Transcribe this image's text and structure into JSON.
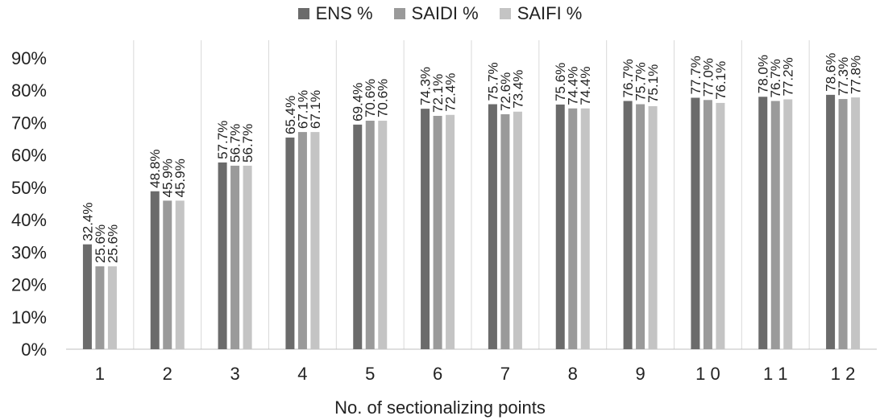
{
  "chart_data": {
    "type": "bar",
    "categories": [
      "1",
      "2",
      "3",
      "4",
      "5",
      "6",
      "7",
      "8",
      "9",
      "1 0",
      "1 1",
      "1 2"
    ],
    "series": [
      {
        "name": "ENS %",
        "color": "#6b6b6b",
        "values": [
          32.4,
          48.8,
          57.7,
          65.4,
          69.4,
          74.3,
          75.7,
          75.6,
          76.7,
          77.7,
          78.0,
          78.6
        ]
      },
      {
        "name": "SAIDI %",
        "color": "#9a9a9a",
        "values": [
          25.6,
          45.9,
          56.7,
          67.1,
          70.6,
          72.1,
          72.6,
          74.4,
          75.7,
          77.0,
          76.7,
          77.3
        ]
      },
      {
        "name": "SAIFI %",
        "color": "#c4c4c4",
        "values": [
          25.6,
          45.9,
          56.7,
          67.1,
          70.6,
          72.4,
          73.4,
          74.4,
          75.1,
          76.1,
          77.2,
          77.8
        ]
      }
    ],
    "data_labels": [
      [
        "32.4%",
        "25.6%",
        "25.6%"
      ],
      [
        "48.8%",
        "45.9%",
        "45.9%"
      ],
      [
        "57.7%",
        "56.7%",
        "56.7%"
      ],
      [
        "65.4%",
        "67.1%",
        "67.1%"
      ],
      [
        "69.4%",
        "70.6%",
        "70.6%"
      ],
      [
        "74.3%",
        "72.1%",
        "72.4%"
      ],
      [
        "75.7%",
        "72.6%",
        "73.4%"
      ],
      [
        "75.6%",
        "74.4%",
        "74.4%"
      ],
      [
        "76.7%",
        "75.7%",
        "75.1%"
      ],
      [
        "77.7%",
        "77.0%",
        "76.1%"
      ],
      [
        "78.0%",
        "76.7%",
        "77.2%"
      ],
      [
        "78.6%",
        "77.3%",
        "77.8%"
      ]
    ],
    "xlabel": "No. of sectionalizing points",
    "ylabel": "",
    "ylim": [
      0,
      90
    ],
    "yticks": [
      "0%",
      "10%",
      "20%",
      "30%",
      "40%",
      "50%",
      "60%",
      "70%",
      "80%",
      "90%"
    ],
    "grid": "vertical category separators",
    "legend_position": "top"
  }
}
